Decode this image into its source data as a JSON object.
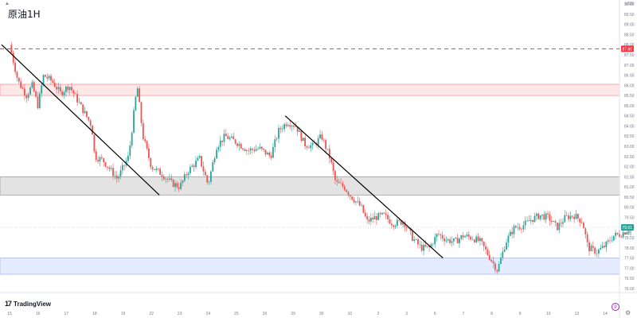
{
  "chart_title": "原油1H",
  "brand": "TradingView",
  "unit": "USD",
  "collapse_icon": "chevron-up-icon",
  "settings_icon": "gear-icon",
  "colors": {
    "up": "#26a69a",
    "down": "#ef5350",
    "resistance_zone": "#fde7e7",
    "support_zone": "#e3e3e3",
    "demand_zone": "#e6ecff",
    "dashed_line": "#f23645",
    "trendline": "#000000",
    "price_badge": "#26a69a",
    "last_price_badge": "#f23645"
  },
  "chart_data": {
    "type": "candlestick",
    "title": "原油1H",
    "ylim": [
      75.8,
      90.2
    ],
    "y_ticks": [
      "90.00",
      "89.50",
      "89.00",
      "88.50",
      "88.00",
      "87.50",
      "87.00",
      "86.50",
      "86.00",
      "85.50",
      "85.00",
      "84.50",
      "84.00",
      "83.50",
      "83.00",
      "82.50",
      "82.00",
      "81.50",
      "81.00",
      "80.50",
      "80.00",
      "79.50",
      "79.00",
      "78.50",
      "78.00",
      "77.50",
      "77.00",
      "76.50",
      "76.00"
    ],
    "x_ticks": [
      "15",
      "16",
      "17",
      "18",
      "19",
      "22",
      "23",
      "24",
      "25",
      "26",
      "29",
      "30",
      "10",
      "2",
      "3",
      "6",
      "7",
      "8",
      "9",
      "10",
      "13",
      "14"
    ],
    "current_price": "79.01",
    "current_price_sub": "25:00",
    "dashed_level": {
      "value": 87.8,
      "label": "87.80"
    },
    "zones": [
      {
        "name": "resistance",
        "from": 85.5,
        "to": 86.05
      },
      {
        "name": "support",
        "from": 80.6,
        "to": 81.5
      },
      {
        "name": "demand",
        "from": 76.7,
        "to": 77.5
      }
    ],
    "trendlines": [
      {
        "from": [
          "15",
          88.0
        ],
        "to": [
          "22",
          80.6
        ]
      },
      {
        "from": [
          "29",
          84.5
        ],
        "to": [
          "6",
          77.5
        ]
      }
    ],
    "price_path": [
      [
        0,
        88.0
      ],
      [
        0.3,
        86.2
      ],
      [
        0.6,
        85.5
      ],
      [
        0.8,
        86.0
      ],
      [
        1.0,
        85.0
      ],
      [
        1.2,
        86.5
      ],
      [
        1.5,
        86.2
      ],
      [
        1.8,
        85.6
      ],
      [
        2.1,
        86.0
      ],
      [
        2.5,
        85.0
      ],
      [
        2.9,
        84.0
      ],
      [
        3.0,
        82.5
      ],
      [
        3.3,
        82.3
      ],
      [
        3.8,
        81.4
      ],
      [
        4.2,
        82.5
      ],
      [
        4.5,
        86.0
      ],
      [
        4.7,
        83.5
      ],
      [
        5.0,
        82.0
      ],
      [
        5.4,
        81.6
      ],
      [
        5.7,
        81.2
      ],
      [
        6.0,
        81.0
      ],
      [
        6.3,
        81.8
      ],
      [
        6.7,
        82.4
      ],
      [
        7.0,
        81.1
      ],
      [
        7.3,
        83.0
      ],
      [
        7.6,
        83.5
      ],
      [
        8.0,
        83.2
      ],
      [
        8.4,
        82.8
      ],
      [
        8.8,
        82.9
      ],
      [
        9.2,
        82.5
      ],
      [
        9.5,
        83.8
      ],
      [
        9.8,
        84.2
      ],
      [
        10.1,
        84.0
      ],
      [
        10.4,
        83.1
      ],
      [
        10.7,
        83.0
      ],
      [
        11.0,
        83.5
      ],
      [
        11.3,
        82.4
      ],
      [
        11.5,
        81.2
      ],
      [
        11.8,
        81.0
      ],
      [
        12.0,
        80.6
      ],
      [
        12.4,
        80.0
      ],
      [
        12.6,
        79.3
      ],
      [
        12.9,
        79.5
      ],
      [
        13.2,
        79.6
      ],
      [
        13.5,
        79.2
      ],
      [
        13.9,
        79.3
      ],
      [
        14.2,
        78.5
      ],
      [
        14.5,
        78.0
      ],
      [
        14.8,
        78.0
      ],
      [
        15.1,
        78.7
      ],
      [
        15.4,
        78.4
      ],
      [
        15.7,
        78.3
      ],
      [
        16.0,
        78.6
      ],
      [
        16.3,
        78.5
      ],
      [
        16.6,
        78.3
      ],
      [
        16.9,
        77.6
      ],
      [
        17.2,
        76.9
      ],
      [
        17.5,
        78.3
      ],
      [
        17.8,
        79.0
      ],
      [
        18.1,
        79.1
      ],
      [
        18.4,
        79.4
      ],
      [
        18.7,
        79.6
      ],
      [
        19.0,
        79.5
      ],
      [
        19.3,
        79.0
      ],
      [
        19.6,
        79.5
      ],
      [
        19.9,
        79.6
      ],
      [
        20.2,
        79.3
      ],
      [
        20.4,
        78.0
      ],
      [
        20.7,
        77.8
      ],
      [
        21.0,
        78.1
      ],
      [
        21.3,
        78.6
      ],
      [
        21.6,
        78.7
      ],
      [
        21.9,
        79.01
      ]
    ]
  }
}
